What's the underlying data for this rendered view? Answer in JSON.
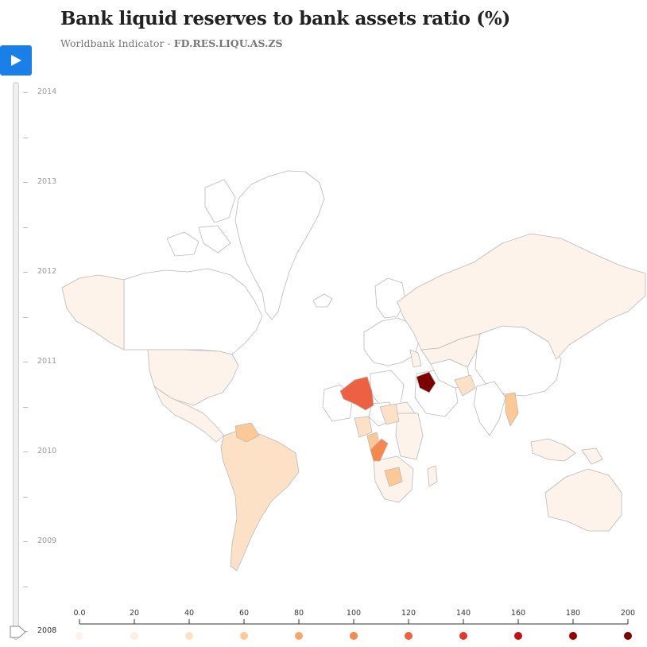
{
  "header": {
    "title": "Bank liquid reserves to bank assets ratio (%)",
    "subtitle_prefix": "Worldbank Indicator - ",
    "subtitle_code": "FD.RES.LIQU.AS.ZS"
  },
  "controls": {
    "play_icon": "play-icon",
    "accent_color": "#1a7fe6"
  },
  "timeline": {
    "years": [
      "2014",
      "2013",
      "2012",
      "2011",
      "2010",
      "2009",
      "2008"
    ],
    "current_year": "2008"
  },
  "legend": {
    "ticks": [
      "0.0",
      "20",
      "40",
      "60",
      "80",
      "100",
      "120",
      "140",
      "160",
      "180",
      "200"
    ],
    "colors": [
      "#fff5eb",
      "#feefe0",
      "#fee6ce",
      "#fdd0a2",
      "#fdae6b",
      "#fd8d3c",
      "#f16913",
      "#d94801",
      "#c0000a",
      "#8b0000",
      "#7a0000"
    ],
    "swatches": [
      "#fdf3ea",
      "#fdeee1",
      "#fde1c7",
      "#fcc895",
      "#fba66a",
      "#f6874e",
      "#ec6141",
      "#de3a2e",
      "#c21014",
      "#930000",
      "#7b0000"
    ]
  },
  "map": {
    "no_data_color": "#ffffff",
    "border_color": "#b9b9b9",
    "highlighted_regions": [
      {
        "name": "Algeria",
        "value": 115
      },
      {
        "name": "Iraq",
        "value": 200
      },
      {
        "name": "Congo",
        "value": 105
      },
      {
        "name": "Zambia",
        "value": 70
      },
      {
        "name": "Myanmar",
        "value": 60
      },
      {
        "name": "Venezuela",
        "value": 45
      }
    ]
  }
}
